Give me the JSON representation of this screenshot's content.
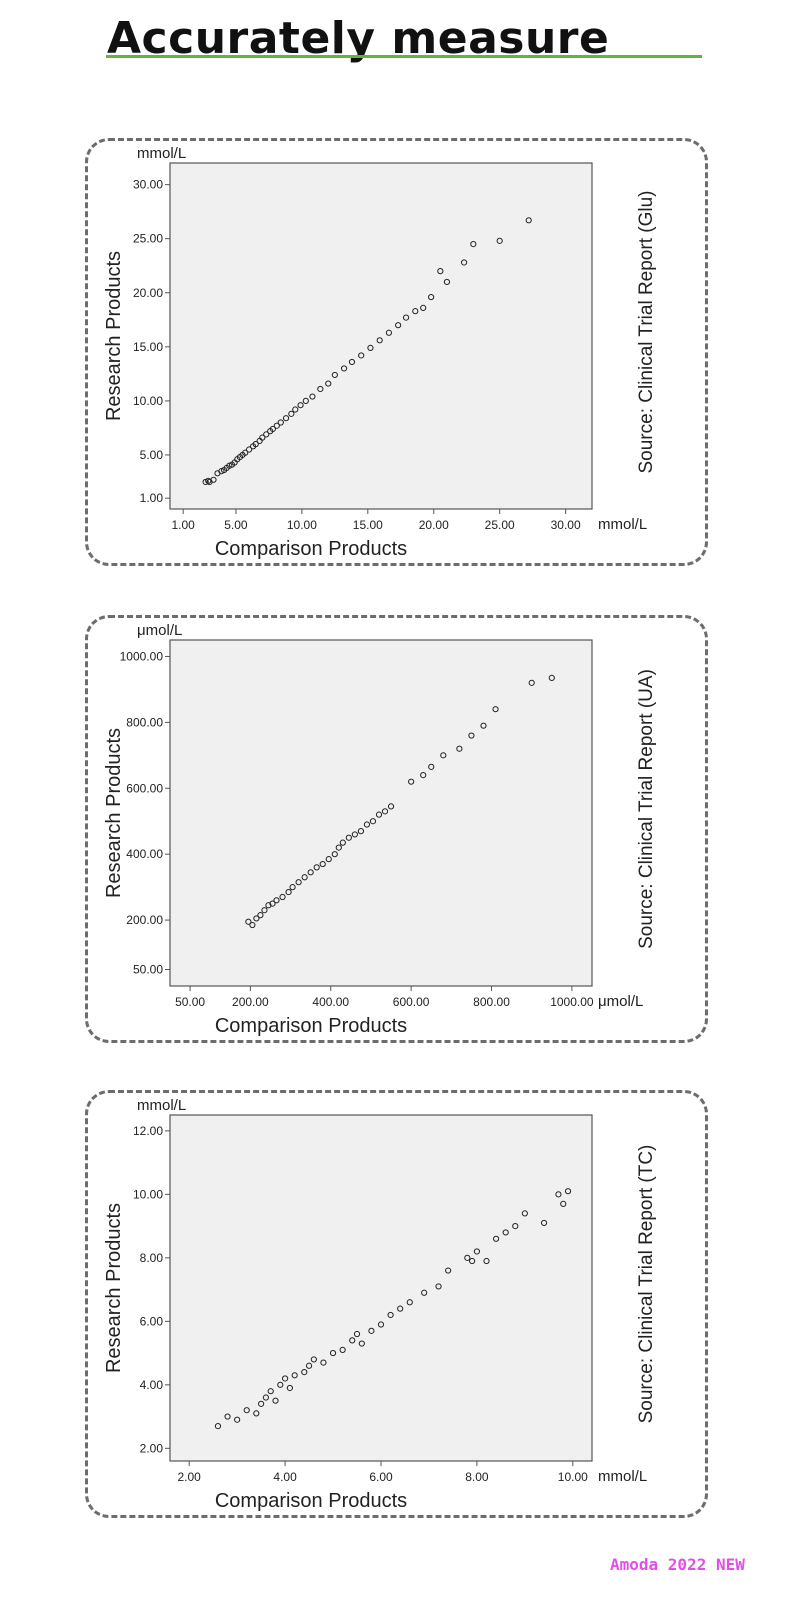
{
  "header": {
    "title": "Accurately measure"
  },
  "footer": {
    "watermark": "Amoda 2022 NEW"
  },
  "chart_data": [
    {
      "type": "scatter",
      "ylabel": "Research Products",
      "xlabel": "Comparison Products",
      "yunit": "mmol/L",
      "xunit": "mmol/L",
      "source": "Source: Clinical Trial Report (Glu)",
      "xticks": [
        "1.00",
        "5.00",
        "10.00",
        "15.00",
        "20.00",
        "25.00",
        "30.00"
      ],
      "yticks": [
        "1.00",
        "5.00",
        "10.00",
        "15.00",
        "20.00",
        "25.00",
        "30.00"
      ],
      "xlim": [
        0,
        32
      ],
      "ylim": [
        0,
        32
      ],
      "points": [
        [
          2.7,
          2.5
        ],
        [
          2.9,
          2.6
        ],
        [
          3.0,
          2.5
        ],
        [
          3.3,
          2.7
        ],
        [
          3.6,
          3.3
        ],
        [
          3.9,
          3.5
        ],
        [
          4.1,
          3.6
        ],
        [
          4.3,
          3.8
        ],
        [
          4.5,
          4.0
        ],
        [
          4.7,
          4.1
        ],
        [
          4.9,
          4.3
        ],
        [
          5.1,
          4.6
        ],
        [
          5.3,
          4.8
        ],
        [
          5.5,
          5.0
        ],
        [
          5.7,
          5.2
        ],
        [
          6.0,
          5.5
        ],
        [
          6.3,
          5.8
        ],
        [
          6.5,
          6.0
        ],
        [
          6.8,
          6.3
        ],
        [
          7.0,
          6.6
        ],
        [
          7.3,
          6.9
        ],
        [
          7.6,
          7.2
        ],
        [
          7.8,
          7.4
        ],
        [
          8.1,
          7.7
        ],
        [
          8.4,
          8.0
        ],
        [
          8.8,
          8.4
        ],
        [
          9.2,
          8.8
        ],
        [
          9.5,
          9.2
        ],
        [
          9.9,
          9.6
        ],
        [
          10.3,
          10.0
        ],
        [
          10.8,
          10.4
        ],
        [
          11.4,
          11.1
        ],
        [
          12.0,
          11.6
        ],
        [
          12.5,
          12.4
        ],
        [
          13.2,
          13.0
        ],
        [
          13.8,
          13.6
        ],
        [
          14.5,
          14.2
        ],
        [
          15.2,
          14.9
        ],
        [
          15.9,
          15.6
        ],
        [
          16.6,
          16.3
        ],
        [
          17.3,
          17.0
        ],
        [
          17.9,
          17.7
        ],
        [
          18.6,
          18.3
        ],
        [
          19.2,
          18.6
        ],
        [
          19.8,
          19.6
        ],
        [
          20.5,
          22.0
        ],
        [
          21.0,
          21.0
        ],
        [
          22.3,
          22.8
        ],
        [
          23.0,
          24.5
        ],
        [
          25.0,
          24.8
        ],
        [
          27.2,
          26.7
        ]
      ]
    },
    {
      "type": "scatter",
      "ylabel": "Research Products",
      "xlabel": "Comparison Products",
      "yunit": "μmol/L",
      "xunit": "μmol/L",
      "source": "Source: Clinical Trial Report  (UA)",
      "xticks": [
        "50.00",
        "200.00",
        "400.00",
        "600.00",
        "800.00",
        "1000.00"
      ],
      "yticks": [
        "50.00",
        "200.00",
        "400.00",
        "600.00",
        "800.00",
        "1000.00"
      ],
      "xlim": [
        0,
        1050
      ],
      "ylim": [
        0,
        1050
      ],
      "points": [
        [
          195,
          195
        ],
        [
          205,
          185
        ],
        [
          215,
          205
        ],
        [
          225,
          215
        ],
        [
          235,
          230
        ],
        [
          245,
          245
        ],
        [
          255,
          250
        ],
        [
          265,
          260
        ],
        [
          280,
          270
        ],
        [
          295,
          285
        ],
        [
          305,
          300
        ],
        [
          320,
          315
        ],
        [
          335,
          330
        ],
        [
          350,
          345
        ],
        [
          365,
          360
        ],
        [
          380,
          370
        ],
        [
          395,
          385
        ],
        [
          410,
          400
        ],
        [
          420,
          420
        ],
        [
          430,
          435
        ],
        [
          445,
          450
        ],
        [
          460,
          460
        ],
        [
          475,
          470
        ],
        [
          490,
          490
        ],
        [
          505,
          500
        ],
        [
          520,
          520
        ],
        [
          535,
          530
        ],
        [
          550,
          545
        ],
        [
          600,
          620
        ],
        [
          630,
          640
        ],
        [
          650,
          665
        ],
        [
          680,
          700
        ],
        [
          720,
          720
        ],
        [
          750,
          760
        ],
        [
          780,
          790
        ],
        [
          810,
          840
        ],
        [
          900,
          920
        ],
        [
          950,
          935
        ]
      ]
    },
    {
      "type": "scatter",
      "ylabel": "Research Products",
      "xlabel": "Comparison Products",
      "yunit": "mmol/L",
      "xunit": "mmol/L",
      "source": "Source: Clinical Trial Report (TC)",
      "xticks": [
        "2.00",
        "4.00",
        "6.00",
        "8.00",
        "10.00"
      ],
      "yticks": [
        "2.00",
        "4.00",
        "6.00",
        "8.00",
        "10.00",
        "12.00"
      ],
      "xlim": [
        1.6,
        10.4
      ],
      "ylim": [
        1.6,
        12.5
      ],
      "points": [
        [
          2.6,
          2.7
        ],
        [
          2.8,
          3.0
        ],
        [
          3.0,
          2.9
        ],
        [
          3.2,
          3.2
        ],
        [
          3.4,
          3.1
        ],
        [
          3.5,
          3.4
        ],
        [
          3.6,
          3.6
        ],
        [
          3.7,
          3.8
        ],
        [
          3.8,
          3.5
        ],
        [
          3.9,
          4.0
        ],
        [
          4.0,
          4.2
        ],
        [
          4.1,
          3.9
        ],
        [
          4.2,
          4.3
        ],
        [
          4.4,
          4.4
        ],
        [
          4.5,
          4.6
        ],
        [
          4.6,
          4.8
        ],
        [
          4.8,
          4.7
        ],
        [
          5.0,
          5.0
        ],
        [
          5.2,
          5.1
        ],
        [
          5.4,
          5.4
        ],
        [
          5.5,
          5.6
        ],
        [
          5.6,
          5.3
        ],
        [
          5.8,
          5.7
        ],
        [
          6.0,
          5.9
        ],
        [
          6.2,
          6.2
        ],
        [
          6.4,
          6.4
        ],
        [
          6.6,
          6.6
        ],
        [
          6.9,
          6.9
        ],
        [
          7.2,
          7.1
        ],
        [
          7.4,
          7.6
        ],
        [
          7.8,
          8.0
        ],
        [
          7.9,
          7.9
        ],
        [
          8.0,
          8.2
        ],
        [
          8.2,
          7.9
        ],
        [
          8.4,
          8.6
        ],
        [
          8.6,
          8.8
        ],
        [
          8.8,
          9.0
        ],
        [
          9.0,
          9.4
        ],
        [
          9.4,
          9.1
        ],
        [
          9.7,
          10.0
        ],
        [
          9.8,
          9.7
        ],
        [
          9.9,
          10.1
        ]
      ]
    }
  ]
}
